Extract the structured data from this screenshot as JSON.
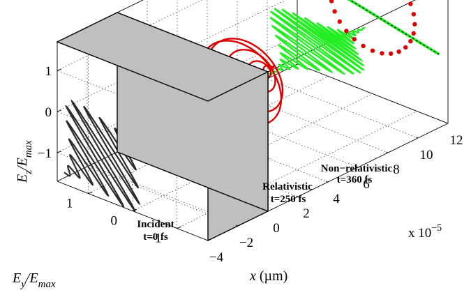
{
  "chart_data": {
    "type": "3d-line",
    "title": "",
    "x_ticks": [
      "−4",
      "−2",
      "0",
      "2",
      "4",
      "6",
      "8",
      "10",
      "12"
    ],
    "x_exponent_prefix": "x 10",
    "x_exponent_power": "−5",
    "y_ticks": [
      "−1",
      "0",
      "1"
    ],
    "z_ticks": [
      "−1",
      "0",
      "1"
    ],
    "xlabel": {
      "var": "x",
      "unit": " (µm)"
    },
    "ylabel": {
      "base": "E",
      "sub1": "y",
      "sep": "/E",
      "sub2": "max"
    },
    "zlabel": {
      "base": "E",
      "sub1": "z",
      "sep": "/E",
      "sub2": "max"
    },
    "xlim": [
      -4,
      12
    ],
    "ylim": [
      -1.7,
      1.7
    ],
    "zlim": [
      -1.7,
      1.7
    ],
    "grid": true,
    "slab": {
      "x_range": [
        -4,
        0
      ],
      "color": "#bfbfbf"
    },
    "series": [
      {
        "label_line1": "Incident",
        "label_line2": "t=0 fs",
        "color": "#2b2b2b",
        "x_center": -6,
        "half_width": 2.5,
        "polarization": "linear, diagonal",
        "amplitude": 1.0
      },
      {
        "label_line1": "Relativistic",
        "label_line2": "t=250 fs",
        "color": "#dd0000",
        "x_center": 3.3,
        "half_width": 2.2,
        "polarization": "elliptical",
        "amplitude": 1.0
      },
      {
        "label_line1": "Non−relativistic",
        "label_line2": "t=360 fs",
        "color": "#22ee22",
        "x_center": 8.3,
        "half_width": 3.2,
        "polarization": "linear, y",
        "amplitude": 1.0
      }
    ],
    "end_projection": {
      "x": 12,
      "red_ellipse": {
        "color": "#dd0000",
        "marker": "dot"
      },
      "green_line": {
        "color": "#22ee22",
        "marker": "dashed"
      }
    }
  }
}
